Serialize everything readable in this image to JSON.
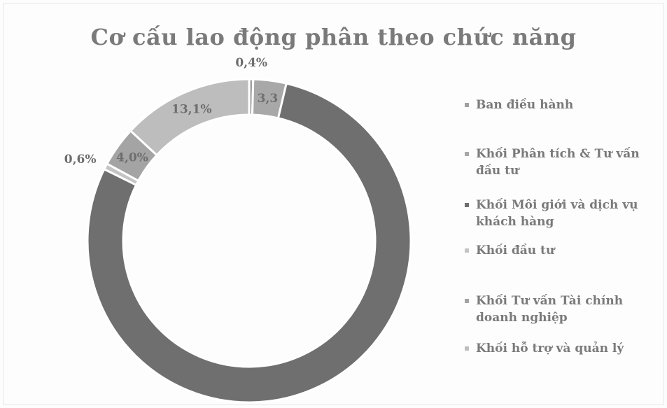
{
  "chart_data": {
    "type": "pie",
    "title": "Cơ cấu lao động phân theo chức năng",
    "donut": true,
    "legend_position": "right",
    "series": [
      {
        "name": "Ban điều hành",
        "value": 0.4,
        "label": "0,4%",
        "color": "#a0a0a0"
      },
      {
        "name": "Khối Phân tích & Tư vấn đầu tư",
        "value": 3.3,
        "label": "3,3",
        "color": "#a8a8a8"
      },
      {
        "name": "Khối Môi giới và dịch vụ khách hàng",
        "value": 78.6,
        "label": "",
        "color": "#6f6f6f"
      },
      {
        "name": "Khối đầu tư",
        "value": 0.6,
        "label": "0,6%",
        "color": "#c4c4c4"
      },
      {
        "name": "Khối Tư vấn Tài chính doanh nghiệp",
        "value": 4.0,
        "label": "4,0%",
        "color": "#a4a4a4"
      },
      {
        "name": "Khối hỗ trợ và quản lý",
        "value": 13.1,
        "label": "13,1%",
        "color": "#bdbdbd"
      }
    ]
  },
  "legend": [
    {
      "line1": "Ban điều hành",
      "line2": ""
    },
    {
      "line1": "Khối Phân tích & Tư vấn",
      "line2": "đầu tư"
    },
    {
      "line1": "Khối Môi giới và dịch vụ",
      "line2": "khách hàng"
    },
    {
      "line1": "Khối đầu tư",
      "line2": ""
    },
    {
      "line1": "Khối Tư vấn Tài chính",
      "line2": "doanh nghiệp"
    },
    {
      "line1": "Khối hỗ trợ và quản lý",
      "line2": ""
    }
  ]
}
